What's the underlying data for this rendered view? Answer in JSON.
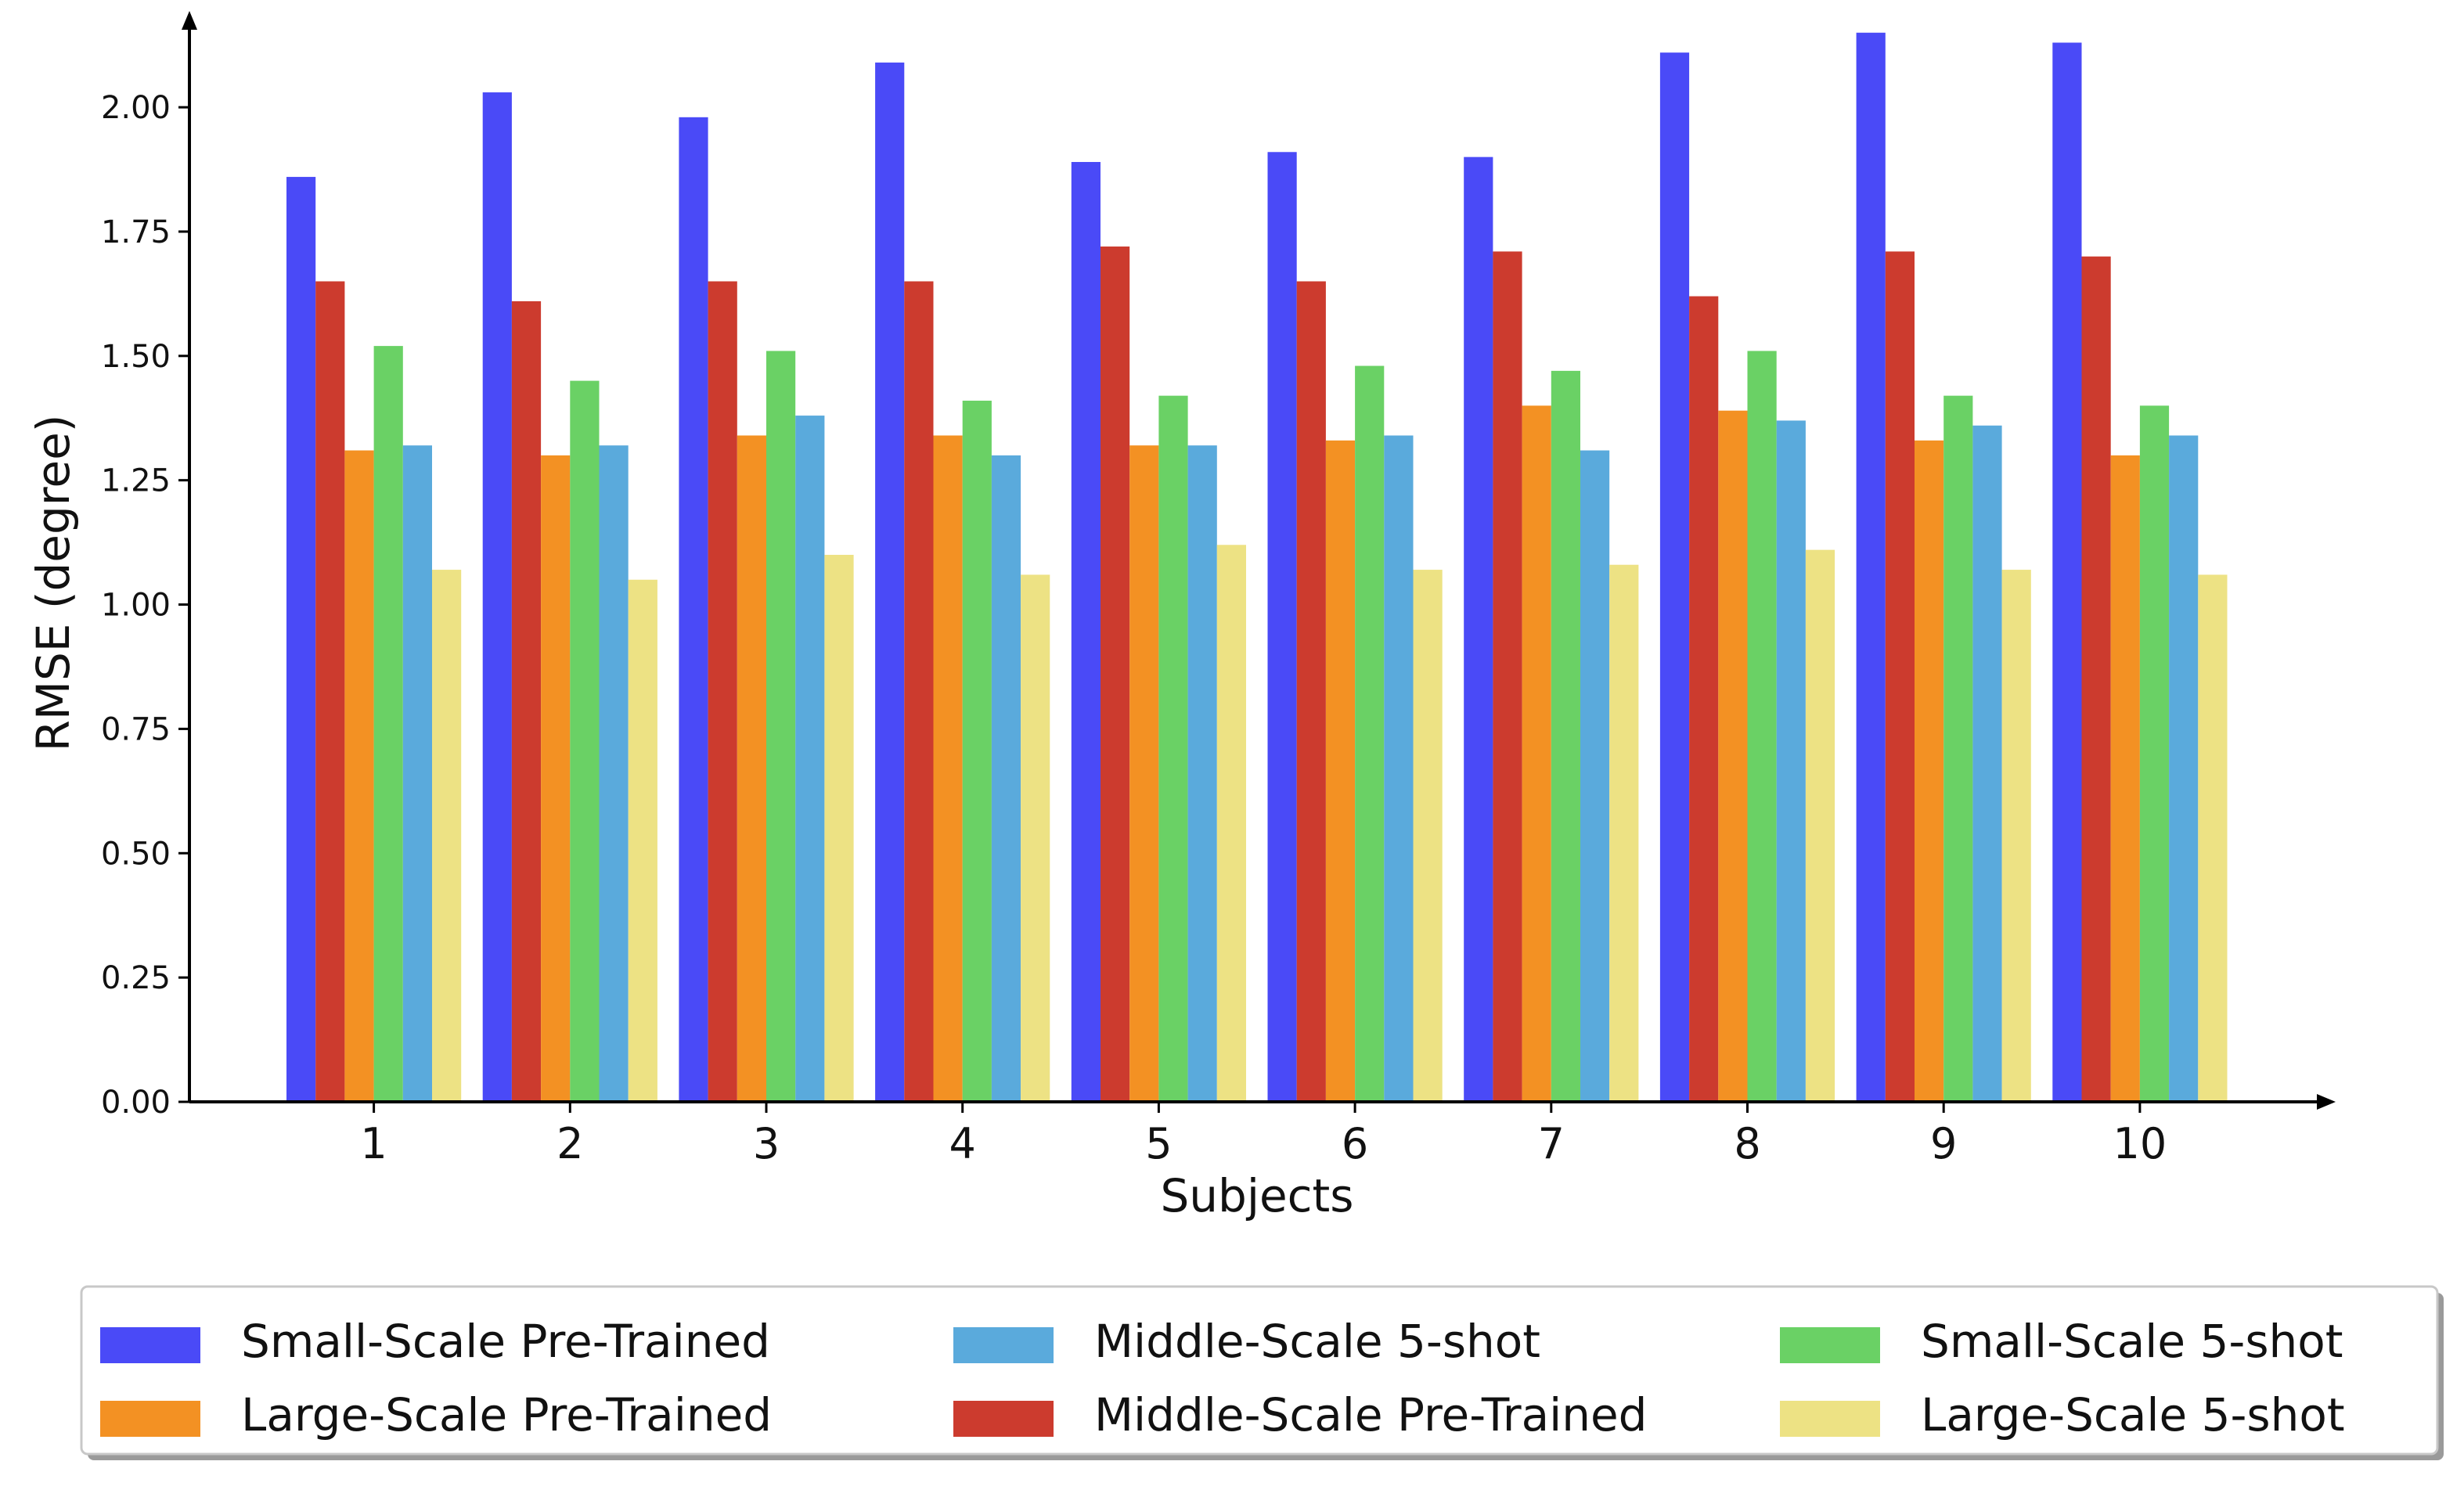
{
  "chart_data": {
    "type": "bar",
    "title": "",
    "xlabel": "Subjects",
    "ylabel": "RMSE (degree)",
    "ylim": [
      0,
      2.2
    ],
    "yticks": [
      "0.00",
      "0.25",
      "0.50",
      "0.75",
      "1.00",
      "1.25",
      "1.50",
      "1.75",
      "2.00"
    ],
    "categories": [
      "1",
      "2",
      "3",
      "4",
      "5",
      "6",
      "7",
      "8",
      "9",
      "10"
    ],
    "legend_position": "bottom",
    "series": [
      {
        "name": "Small-Scale Pre-Trained",
        "color": "#4a4af7",
        "values": [
          1.86,
          2.03,
          1.98,
          2.09,
          1.89,
          1.91,
          1.9,
          2.11,
          2.15,
          2.13
        ]
      },
      {
        "name": "Middle-Scale Pre-Trained",
        "color": "#cc3b2e",
        "values": [
          1.65,
          1.61,
          1.65,
          1.65,
          1.72,
          1.65,
          1.71,
          1.62,
          1.71,
          1.7
        ]
      },
      {
        "name": "Large-Scale Pre-Trained",
        "color": "#f39123",
        "values": [
          1.31,
          1.3,
          1.34,
          1.34,
          1.32,
          1.33,
          1.4,
          1.39,
          1.33,
          1.3
        ]
      },
      {
        "name": "Small-Scale 5-shot",
        "color": "#6ad165",
        "values": [
          1.52,
          1.45,
          1.51,
          1.41,
          1.42,
          1.48,
          1.47,
          1.51,
          1.42,
          1.4
        ]
      },
      {
        "name": "Middle-Scale 5-shot",
        "color": "#5aaadc",
        "values": [
          1.32,
          1.32,
          1.38,
          1.3,
          1.32,
          1.34,
          1.31,
          1.37,
          1.36,
          1.34
        ]
      },
      {
        "name": "Large-Scale 5-shot",
        "color": "#ede284",
        "values": [
          1.07,
          1.05,
          1.1,
          1.06,
          1.12,
          1.07,
          1.08,
          1.11,
          1.07,
          1.06
        ]
      }
    ],
    "legend_order": [
      0,
      2,
      4,
      1,
      3,
      5
    ]
  }
}
